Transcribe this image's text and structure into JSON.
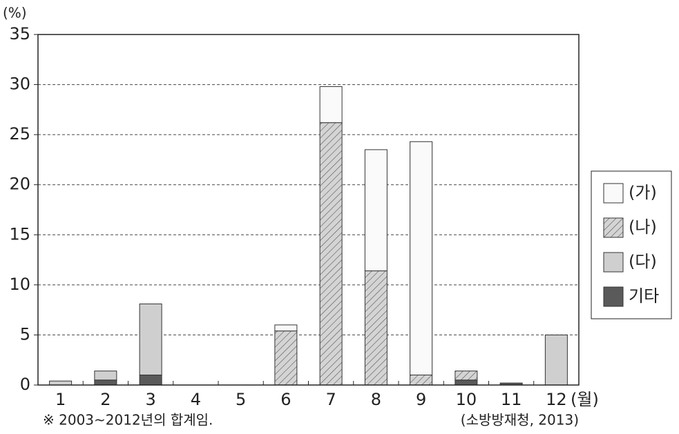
{
  "chart_data": {
    "type": "stacked-bar",
    "y_unit": "(%)",
    "x_unit": "(월)",
    "note": "※ 2003~2012년의 합계임.",
    "source": "(소방방재청, 2013)",
    "categories": [
      "1",
      "2",
      "3",
      "4",
      "5",
      "6",
      "7",
      "8",
      "9",
      "10",
      "11",
      "12"
    ],
    "series": [
      {
        "name": "기타",
        "color": "#5a5a5a",
        "values": [
          0,
          0.5,
          1.0,
          0,
          0,
          0,
          0,
          0,
          0,
          0.5,
          0.2,
          0
        ]
      },
      {
        "name": "(다)",
        "color": "#cfcfcf",
        "values": [
          0.4,
          0.9,
          7.1,
          0,
          0,
          0,
          0,
          0,
          0,
          0,
          0,
          5.0
        ]
      },
      {
        "name": "(나)",
        "color": "#d4d4d4",
        "pattern": "hatch",
        "values": [
          0,
          0,
          0,
          0,
          0,
          5.4,
          26.2,
          11.4,
          1.0,
          0.9,
          0,
          0
        ]
      },
      {
        "name": "(가)",
        "color": "#fafafa",
        "values": [
          0,
          0,
          0,
          0,
          0,
          0.6,
          3.6,
          12.1,
          23.3,
          0,
          0,
          0
        ]
      }
    ],
    "ylim": [
      0,
      35
    ],
    "yticks": [
      0,
      5,
      10,
      15,
      20,
      25,
      30,
      35
    ],
    "grid": true,
    "legend": "right"
  }
}
